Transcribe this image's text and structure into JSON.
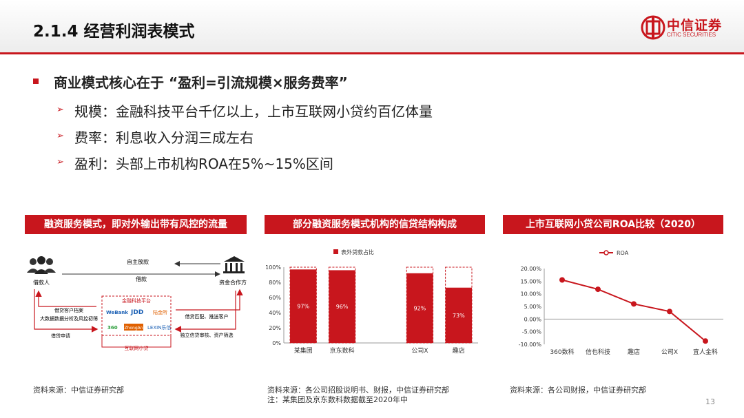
{
  "header": {
    "title": "2.1.4 经营利润表模式",
    "logo_cn": "中信证券",
    "logo_en": "CITIC SECURITIES"
  },
  "bullets": {
    "main": "商业模式核心在于 “盈利=引流规模×服务费率”",
    "subs": [
      "规模：金融科技平台千亿以上，上市互联网小贷约百亿体量",
      "费率：利息收入分润三成左右",
      "盈利：头部上市机构ROA在5%~15%区间"
    ]
  },
  "panel1": {
    "title": "融资服务模式，即对外输出带有风控的流量",
    "borrower": "借款人",
    "funder": "资金合作方",
    "self_loan": "自主放款",
    "loan": "借款",
    "platform": "金融科技平台",
    "micro": "互联网小贷",
    "left_notes": [
      "借贷客户档案",
      "大数据数据分析及风控初筛"
    ],
    "apply": "借贷申请",
    "right_notes": [
      "借贷匹配、推送客户",
      "独立信贷审核、资产筛选"
    ],
    "logos": [
      "WeBank",
      "JDD",
      "陆金所",
      "360",
      "ZhongAn",
      "LEXIN乐信"
    ],
    "source": "资料来源：中信证券研究部"
  },
  "panel2": {
    "title": "部分融资服务模式机构的信贷结构构成",
    "source": "资料来源：各公司招股说明书、财报，中信证券研究部",
    "note": "注：某集团及京东数科数据截至2020年中"
  },
  "panel3": {
    "title": "上市互联网小贷公司ROA比较（2020）",
    "source": "资料来源：各公司财报，中信证券研究部"
  },
  "page_number": "13",
  "colors": {
    "accent": "#c8161d"
  },
  "chart_data": [
    {
      "type": "bar",
      "categories": [
        "某集团",
        "京东数科",
        "",
        "公司X",
        "趣店"
      ],
      "series": [
        {
          "name": "表外贷款占比",
          "values": [
            97,
            96,
            null,
            92,
            73
          ]
        }
      ],
      "data_labels": [
        "97%",
        "96%",
        "",
        "92%",
        "73%"
      ],
      "ylim": [
        0,
        100
      ],
      "yticks": [
        "0%",
        "20%",
        "40%",
        "60%",
        "80%",
        "100%"
      ],
      "legend": "top"
    },
    {
      "type": "line",
      "categories": [
        "360数科",
        "信也科技",
        "趣店",
        "公司X",
        "宜人金科"
      ],
      "series": [
        {
          "name": "ROA",
          "values": [
            15.5,
            11.8,
            6.0,
            3.0,
            -8.7
          ]
        }
      ],
      "ylim": [
        -10,
        20
      ],
      "yticks": [
        "-10.00%",
        "-5.00%",
        "0.00%",
        "5.00%",
        "10.00%",
        "15.00%",
        "20.00%"
      ],
      "legend": "top"
    }
  ]
}
